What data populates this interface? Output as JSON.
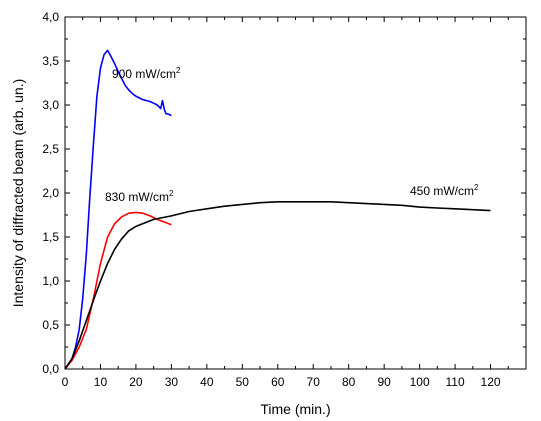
{
  "chart_data": {
    "type": "line",
    "xlabel": "Time (min.)",
    "ylabel": "Intensity of diffracted beam (arb. un.)",
    "xlim": [
      0,
      130
    ],
    "ylim": [
      0,
      4.0
    ],
    "x_ticks": [
      "0",
      "10",
      "20",
      "30",
      "40",
      "50",
      "60",
      "70",
      "80",
      "90",
      "100",
      "110",
      "120"
    ],
    "y_ticks": [
      "0,0",
      "0,5",
      "1,0",
      "1,5",
      "2,0",
      "2,5",
      "3,0",
      "3,5",
      "4,0"
    ],
    "grid": false,
    "series": [
      {
        "name": "900 mW/cm²",
        "label_main": "900 mW/cm",
        "label_sup": "2",
        "color": "#0000ff",
        "points": [
          [
            0,
            0
          ],
          [
            1,
            0.05
          ],
          [
            2,
            0.12
          ],
          [
            3,
            0.25
          ],
          [
            4,
            0.45
          ],
          [
            5,
            0.8
          ],
          [
            6,
            1.3
          ],
          [
            7,
            1.95
          ],
          [
            8,
            2.55
          ],
          [
            9,
            3.1
          ],
          [
            10,
            3.42
          ],
          [
            11,
            3.57
          ],
          [
            12,
            3.62
          ],
          [
            13,
            3.55
          ],
          [
            14,
            3.47
          ],
          [
            15,
            3.38
          ],
          [
            16,
            3.3
          ],
          [
            17,
            3.22
          ],
          [
            18,
            3.17
          ],
          [
            19,
            3.13
          ],
          [
            20,
            3.1
          ],
          [
            21,
            3.08
          ],
          [
            22,
            3.06
          ],
          [
            23,
            3.05
          ],
          [
            24,
            3.04
          ],
          [
            25,
            3.02
          ],
          [
            26,
            3.0
          ],
          [
            27,
            2.96
          ],
          [
            27.5,
            3.05
          ],
          [
            28,
            2.95
          ],
          [
            28.5,
            2.9
          ],
          [
            29,
            2.9
          ],
          [
            30,
            2.88
          ]
        ]
      },
      {
        "name": "830 mW/cm²",
        "label_main": "830 mW/cm",
        "label_sup": "2",
        "color": "#ff0000",
        "points": [
          [
            0,
            0
          ],
          [
            2,
            0.1
          ],
          [
            4,
            0.25
          ],
          [
            6,
            0.45
          ],
          [
            8,
            0.8
          ],
          [
            10,
            1.2
          ],
          [
            12,
            1.5
          ],
          [
            14,
            1.65
          ],
          [
            16,
            1.73
          ],
          [
            18,
            1.77
          ],
          [
            20,
            1.78
          ],
          [
            22,
            1.77
          ],
          [
            24,
            1.74
          ],
          [
            26,
            1.7
          ],
          [
            28,
            1.67
          ],
          [
            30,
            1.64
          ]
        ]
      },
      {
        "name": "450 mW/cm²",
        "label_main": "450 mW/cm",
        "label_sup": "2",
        "color": "#000000",
        "points": [
          [
            0,
            0
          ],
          [
            2,
            0.12
          ],
          [
            4,
            0.32
          ],
          [
            6,
            0.55
          ],
          [
            8,
            0.78
          ],
          [
            10,
            1.0
          ],
          [
            12,
            1.2
          ],
          [
            14,
            1.36
          ],
          [
            16,
            1.48
          ],
          [
            18,
            1.57
          ],
          [
            20,
            1.62
          ],
          [
            25,
            1.7
          ],
          [
            30,
            1.74
          ],
          [
            35,
            1.79
          ],
          [
            40,
            1.82
          ],
          [
            45,
            1.85
          ],
          [
            50,
            1.87
          ],
          [
            55,
            1.89
          ],
          [
            60,
            1.9
          ],
          [
            65,
            1.9
          ],
          [
            70,
            1.9
          ],
          [
            75,
            1.9
          ],
          [
            80,
            1.89
          ],
          [
            85,
            1.88
          ],
          [
            90,
            1.87
          ],
          [
            95,
            1.86
          ],
          [
            100,
            1.84
          ],
          [
            105,
            1.83
          ],
          [
            110,
            1.82
          ],
          [
            115,
            1.81
          ],
          [
            120,
            1.8
          ]
        ]
      }
    ]
  }
}
